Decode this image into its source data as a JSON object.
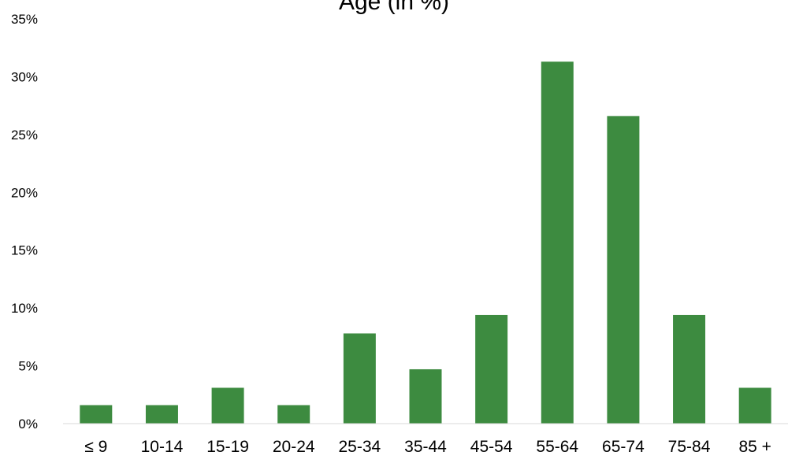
{
  "chart_data": {
    "type": "bar",
    "title": "Age (in %)",
    "xlabel": "",
    "ylabel": "",
    "categories": [
      "≤ 9",
      "10-14",
      "15-19",
      "20-24",
      "25-34",
      "35-44",
      "45-54",
      "55-64",
      "65-74",
      "75-84",
      "85 +"
    ],
    "values": [
      1.6,
      1.6,
      3.1,
      1.6,
      7.8,
      4.7,
      9.4,
      31.3,
      26.6,
      9.4,
      3.1
    ],
    "ylim": [
      0,
      35
    ],
    "yticks": [
      "0%",
      "5%",
      "10%",
      "15%",
      "20%",
      "25%",
      "30%",
      "35%"
    ],
    "grid": false,
    "legend": "none",
    "bar_color": "#3d8b40"
  }
}
